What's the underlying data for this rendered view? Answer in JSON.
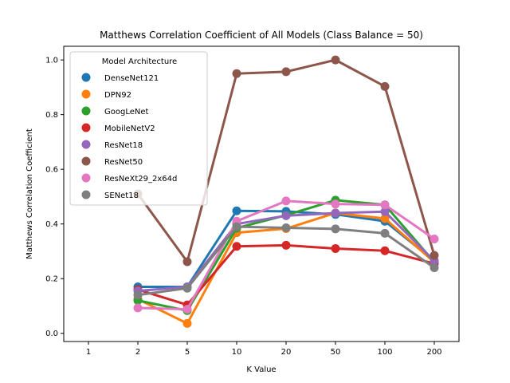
{
  "chart_data": {
    "type": "line",
    "title": "Matthews Correlation Coefficient of All Models (Class Balance = 50)",
    "xlabel": "K Value",
    "ylabel": "Matthews Correlation Coefficient",
    "categories": [
      "1",
      "2",
      "5",
      "10",
      "20",
      "50",
      "100",
      "200"
    ],
    "yticks": [
      "0.0",
      "0.2",
      "0.4",
      "0.6",
      "0.8",
      "1.0"
    ],
    "ylim": [
      -0.03,
      1.05
    ],
    "legend_title": "Model Architecture",
    "legend_position": "top-left",
    "series": [
      {
        "name": "DenseNet121",
        "color": "#1f77b4",
        "values": [
          null,
          0.17,
          0.17,
          0.448,
          0.446,
          0.435,
          0.41,
          0.265
        ]
      },
      {
        "name": "DPN92",
        "color": "#ff7f0e",
        "values": [
          null,
          0.125,
          0.036,
          0.368,
          0.383,
          0.44,
          0.42,
          0.26
        ]
      },
      {
        "name": "GoogLeNet",
        "color": "#2ca02c",
        "values": [
          null,
          0.12,
          0.083,
          0.385,
          0.432,
          0.487,
          0.47,
          0.26
        ]
      },
      {
        "name": "MobileNetV2",
        "color": "#d62728",
        "values": [
          null,
          0.16,
          0.104,
          0.318,
          0.322,
          0.31,
          0.302,
          0.255
        ]
      },
      {
        "name": "ResNet18",
        "color": "#9467bd",
        "values": [
          null,
          0.155,
          0.17,
          0.4,
          0.43,
          0.44,
          0.445,
          0.265
        ]
      },
      {
        "name": "ResNet50",
        "color": "#8c564b",
        "values": [
          null,
          0.51,
          0.262,
          0.95,
          0.957,
          1.0,
          0.903,
          0.285
        ]
      },
      {
        "name": "ResNeXt29_2x64d",
        "color": "#e377c2",
        "values": [
          null,
          0.093,
          0.088,
          0.41,
          0.484,
          0.473,
          0.47,
          0.345
        ]
      },
      {
        "name": "SENet18",
        "color": "#7f7f7f",
        "values": [
          null,
          0.14,
          0.165,
          0.39,
          0.386,
          0.382,
          0.366,
          0.24
        ]
      }
    ]
  }
}
